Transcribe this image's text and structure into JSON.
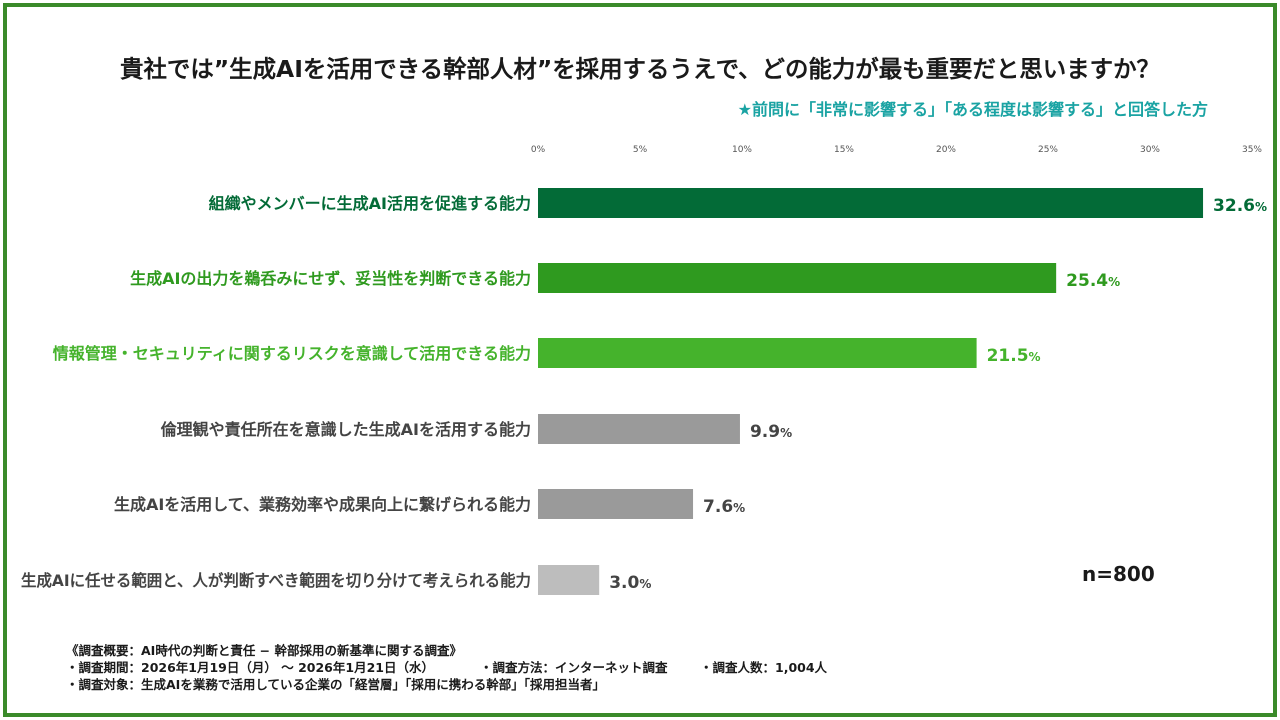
{
  "title": "貴社では”生成AIを活用できる幹部人材”を採用するうえで、どの能力が最も重要だと思いますか？",
  "subtitle": "★前問に「非常に影響する」「ある程度は影響する」と回答した方",
  "sample_size": "n=800",
  "value_unit": "%",
  "colors": {
    "frame": "#3a8a2a",
    "subtitle": "#1aa3a3",
    "tick_text": "#555555",
    "label_default": "#444444"
  },
  "chart_data": {
    "type": "bar",
    "orientation": "horizontal",
    "categories": [
      "組織やメンバーに生成AI活用を促進する能力",
      "生成AIの出力を鵜呑みにせず、妥当性を判断できる能力",
      "情報管理・セキュリティに関するリスクを意識して活用できる能力",
      "倫理観や責任所在を意識した生成AIを活用する能力",
      "生成AIを活用して、業務効率や成果向上に繋げられる能力",
      "生成AIに任せる範囲と、人が判断すべき範囲を切り分けて考えられる能力"
    ],
    "values": [
      32.6,
      25.4,
      21.5,
      9.9,
      7.6,
      3.0
    ],
    "value_labels": [
      "32.6",
      "25.4",
      "21.5",
      "9.9",
      "7.6",
      "3.0"
    ],
    "bar_colors": [
      "#036b37",
      "#2f9a1f",
      "#45b32c",
      "#9a9a9a",
      "#9a9a9a",
      "#bdbdbd"
    ],
    "label_colors": [
      "#036b37",
      "#2f9a1f",
      "#45b32c",
      "#444444",
      "#444444",
      "#444444"
    ],
    "x_ticks": [
      "0%",
      "5%",
      "10%",
      "15%",
      "20%",
      "25%",
      "30%",
      "35%"
    ],
    "xlim": [
      0,
      35
    ],
    "grid": false,
    "legend": "none"
  },
  "footnote": {
    "heading": "《調査概要：AI時代の判断と責任 − 幹部採用の新基準に関する調査》",
    "period": "・調査期間：2026年1月19日（月） 〜 2026年1月21日（水）",
    "method": "・調査方法：インターネット調査",
    "respondents": "・調査人数：1,004人",
    "target": "・調査対象：生成AIを業務で活用している企業の「経営層」「採用に携わる幹部」「採用担当者」"
  }
}
